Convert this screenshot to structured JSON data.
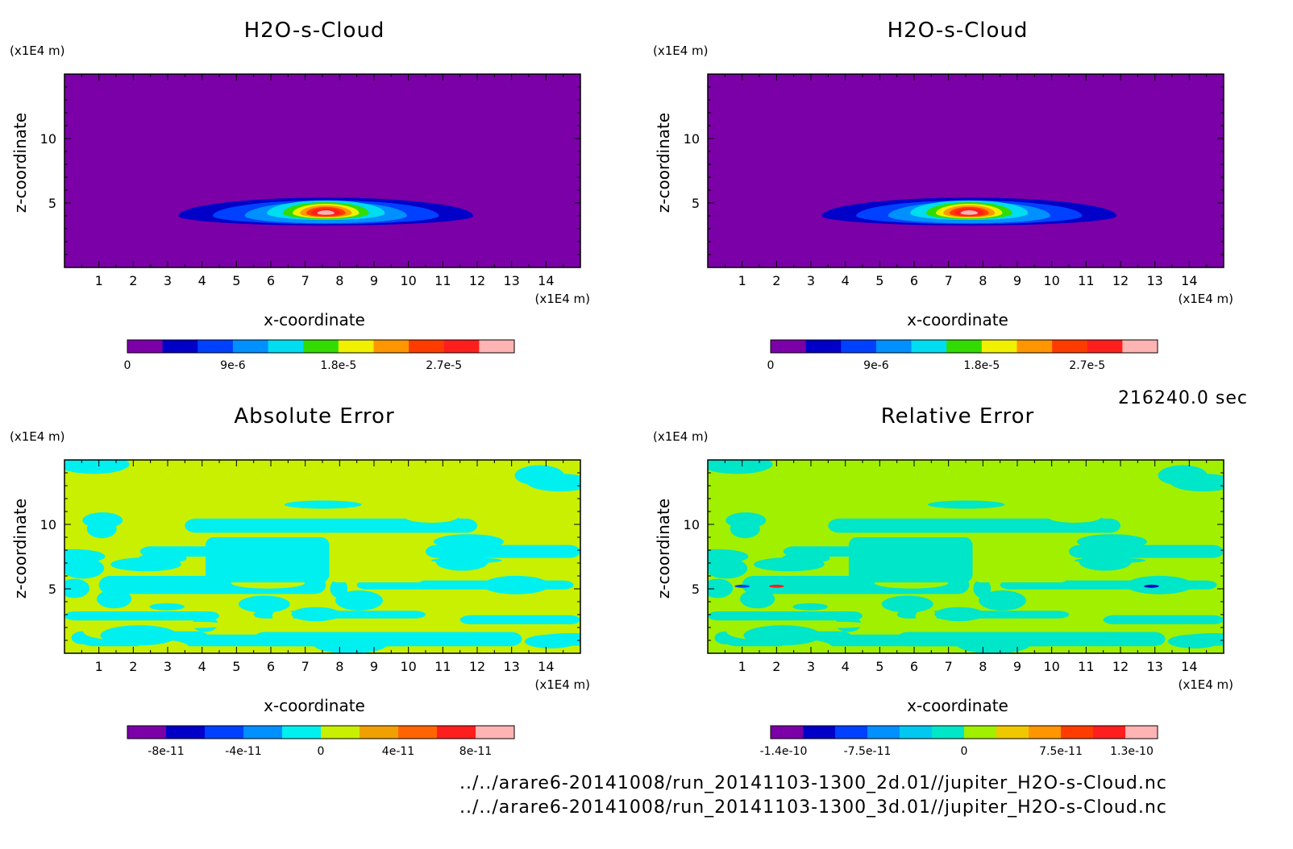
{
  "figure": {
    "timestamp": "216240.0 sec",
    "files": [
      "../../arare6-20141008/run_20141103-1300_2d.01//jupiter_H2O-s-Cloud.nc",
      "../../arare6-20141008/run_20141103-1300_3d.01//jupiter_H2O-s-Cloud.nc"
    ]
  },
  "chart_data": [
    {
      "type": "heatmap",
      "title": "H2O-s-Cloud",
      "xlabel": "x-coordinate",
      "ylabel": "z-coordinate",
      "x_unit": "(x1E4 m)",
      "y_unit": "(x1E4 m)",
      "xlim": [
        0,
        15
      ],
      "ylim": [
        0,
        15
      ],
      "x_ticks": [
        1,
        2,
        3,
        4,
        5,
        6,
        7,
        8,
        9,
        10,
        11,
        12,
        13,
        14
      ],
      "y_ticks": [
        5,
        10
      ],
      "field": "cloud",
      "cloud": {
        "center_x": 7.6,
        "center_z": 4.3,
        "peak": 3.3e-05
      },
      "colorbar": {
        "colors": [
          "#7b00a8",
          "#0000c8",
          "#0040ff",
          "#0090ff",
          "#00dcf0",
          "#32dc00",
          "#f0f000",
          "#ff9600",
          "#ff3c00",
          "#ff1e1e",
          "#ffb4b4"
        ],
        "tick_labels": [
          "0",
          "9e-6",
          "1.8e-5",
          "2.7e-5"
        ],
        "tick_values": [
          0,
          9e-06,
          1.8e-05,
          2.7e-05
        ],
        "range": [
          0,
          3.3e-05
        ]
      }
    },
    {
      "type": "heatmap",
      "title": "H2O-s-Cloud",
      "xlabel": "x-coordinate",
      "ylabel": "z-coordinate",
      "x_unit": "(x1E4 m)",
      "y_unit": "(x1E4 m)",
      "xlim": [
        0,
        15
      ],
      "ylim": [
        0,
        15
      ],
      "x_ticks": [
        1,
        2,
        3,
        4,
        5,
        6,
        7,
        8,
        9,
        10,
        11,
        12,
        13,
        14
      ],
      "y_ticks": [
        5,
        10
      ],
      "field": "cloud",
      "cloud": {
        "center_x": 7.6,
        "center_z": 4.3,
        "peak": 3.3e-05
      },
      "colorbar": {
        "colors": [
          "#7b00a8",
          "#0000c8",
          "#0040ff",
          "#0090ff",
          "#00dcf0",
          "#32dc00",
          "#f0f000",
          "#ff9600",
          "#ff3c00",
          "#ff1e1e",
          "#ffb4b4"
        ],
        "tick_labels": [
          "0",
          "9e-6",
          "1.8e-5",
          "2.7e-5"
        ],
        "tick_values": [
          0,
          9e-06,
          1.8e-05,
          2.7e-05
        ],
        "range": [
          0,
          3.3e-05
        ]
      }
    },
    {
      "type": "heatmap",
      "title": "Absolute Error",
      "xlabel": "x-coordinate",
      "ylabel": "z-coordinate",
      "x_unit": "(x1E4 m)",
      "y_unit": "(x1E4 m)",
      "xlim": [
        0,
        15
      ],
      "ylim": [
        0,
        15
      ],
      "x_ticks": [
        1,
        2,
        3,
        4,
        5,
        6,
        7,
        8,
        9,
        10,
        11,
        12,
        13,
        14
      ],
      "y_ticks": [
        5,
        10
      ],
      "field": "error",
      "dominant_colors": [
        "#c8f000",
        "#00f0f0"
      ],
      "colorbar": {
        "colors": [
          "#7b00a8",
          "#0000c8",
          "#0040ff",
          "#0090ff",
          "#00f0f0",
          "#c8f000",
          "#f0a000",
          "#ff6400",
          "#ff1e1e",
          "#ffb4b4"
        ],
        "tick_labels": [
          "-8e-11",
          "-4e-11",
          "0",
          "4e-11",
          "8e-11"
        ],
        "tick_values": [
          -8e-11,
          -4e-11,
          0,
          4e-11,
          8e-11
        ],
        "range": [
          -1e-10,
          1e-10
        ]
      }
    },
    {
      "type": "heatmap",
      "title": "Relative Error",
      "xlabel": "x-coordinate",
      "ylabel": "z-coordinate",
      "x_unit": "(x1E4 m)",
      "y_unit": "(x1E4 m)",
      "xlim": [
        0,
        15
      ],
      "ylim": [
        0,
        15
      ],
      "x_ticks": [
        1,
        2,
        3,
        4,
        5,
        6,
        7,
        8,
        9,
        10,
        11,
        12,
        13,
        14
      ],
      "y_ticks": [
        5,
        10
      ],
      "field": "error",
      "dominant_colors": [
        "#a0f000",
        "#00e6c8"
      ],
      "spots": [
        {
          "x": 2.0,
          "z": 5.2,
          "color": "#ff1e1e"
        },
        {
          "x": 12.9,
          "z": 5.2,
          "color": "#0000c8"
        },
        {
          "x": 1.0,
          "z": 5.2,
          "color": "#0040ff"
        }
      ],
      "colorbar": {
        "colors": [
          "#7b00a8",
          "#0000c8",
          "#0040ff",
          "#0090ff",
          "#00c8f0",
          "#00e6c8",
          "#a0f000",
          "#f0c800",
          "#ff9600",
          "#ff3c00",
          "#ff1e1e",
          "#ffb4b4"
        ],
        "tick_labels": [
          "-1.4e-10",
          "-7.5e-11",
          "0",
          "7.5e-11",
          "1.3e-10"
        ],
        "tick_values": [
          -1.4e-10,
          -7.5e-11,
          0,
          7.5e-11,
          1.3e-10
        ],
        "range": [
          -1.5e-10,
          1.5e-10
        ]
      }
    }
  ]
}
